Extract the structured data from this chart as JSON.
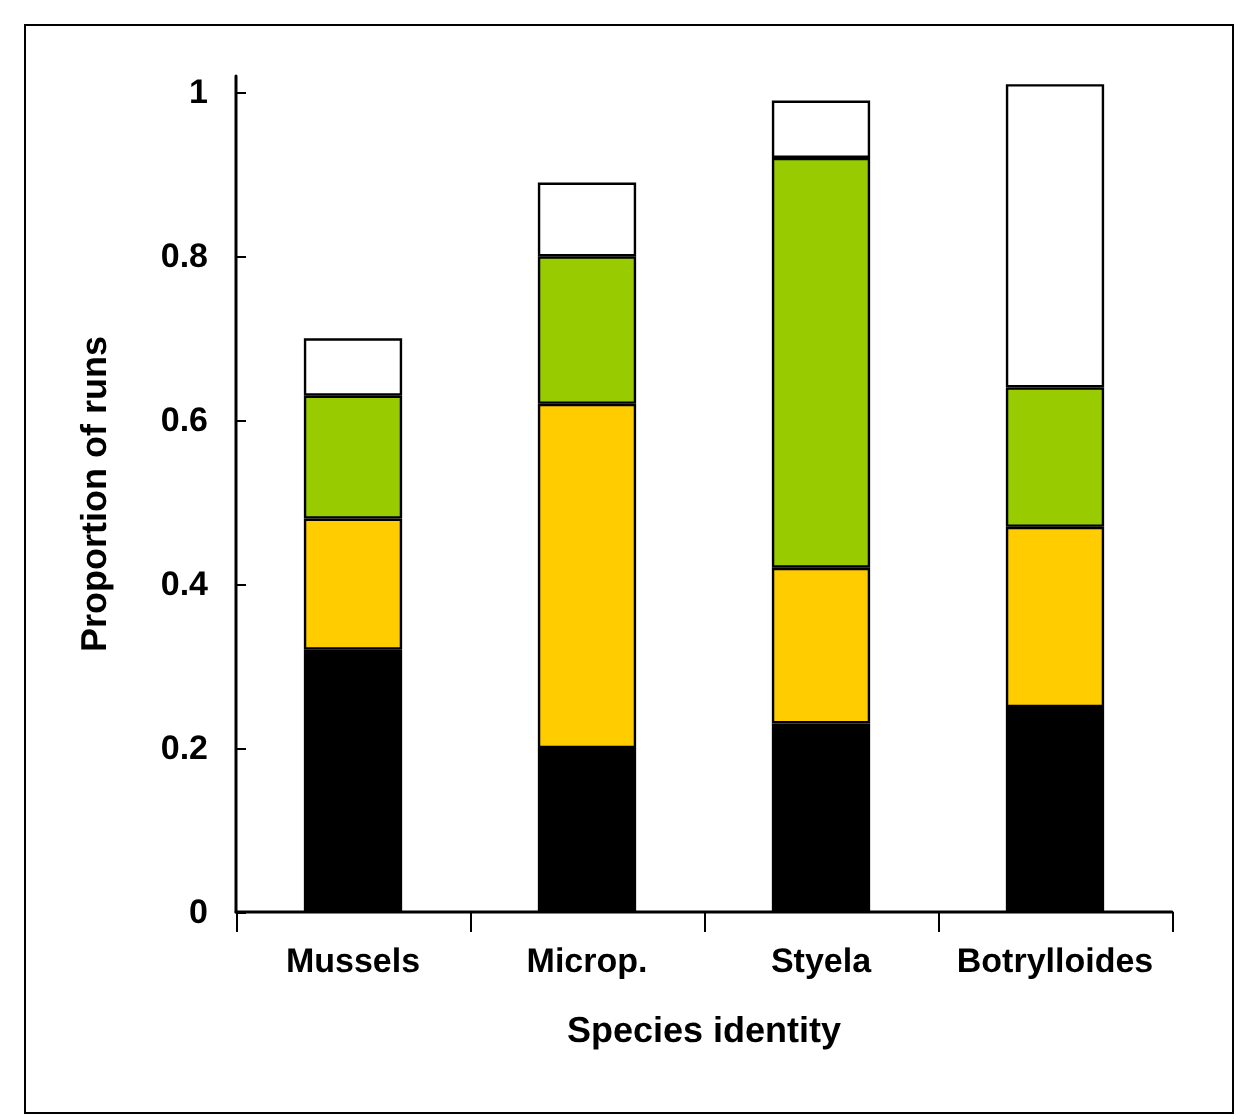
{
  "chart_data": {
    "type": "bar",
    "stacked": true,
    "xlabel": "Species identity",
    "ylabel": "Proportion of runs",
    "categories": [
      "Mussels",
      "Microp.",
      "Styela",
      "Botrylloides"
    ],
    "series": [
      {
        "color": "#000000",
        "values": [
          0.32,
          0.2,
          0.23,
          0.25
        ]
      },
      {
        "color": "#ffcc00",
        "values": [
          0.16,
          0.42,
          0.19,
          0.22
        ]
      },
      {
        "color": "#99cc00",
        "values": [
          0.15,
          0.18,
          0.5,
          0.17
        ]
      },
      {
        "color": "#ffffff",
        "values": [
          0.07,
          0.09,
          0.07,
          0.37
        ]
      }
    ],
    "ylim": [
      0,
      1.02
    ],
    "yticks": [
      0,
      0.2,
      0.4,
      0.6,
      0.8,
      1
    ],
    "grid": false
  }
}
